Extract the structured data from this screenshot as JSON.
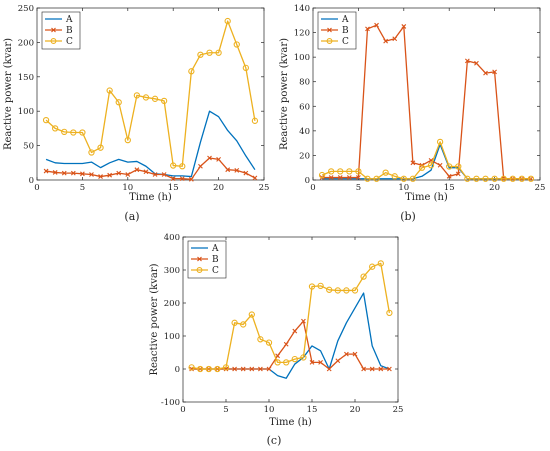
{
  "chart_data": [
    {
      "type": "line",
      "panel_label": "(a)",
      "xlabel": "Time (h)",
      "ylabel": "Reactive power (kvar)",
      "xlim": [
        0,
        25
      ],
      "ylim": [
        0,
        250
      ],
      "xticks": [
        0,
        5,
        10,
        15,
        20,
        25
      ],
      "yticks": [
        0,
        50,
        100,
        150,
        200,
        250
      ],
      "legend_position": "top-left",
      "series": [
        {
          "name": "A",
          "color": "#0072BD",
          "marker": "none",
          "x": [
            1,
            2,
            3,
            4,
            5,
            6,
            7,
            8,
            9,
            10,
            11,
            12,
            13,
            14,
            15,
            16,
            17,
            18,
            19,
            20,
            21,
            22,
            23,
            24
          ],
          "y": [
            30,
            25,
            24,
            24,
            24,
            26,
            18,
            25,
            30,
            26,
            27,
            20,
            9,
            8,
            6,
            6,
            5,
            55,
            100,
            92,
            72,
            57,
            35,
            15
          ]
        },
        {
          "name": "B",
          "color": "#D95319",
          "marker": "x",
          "x": [
            1,
            2,
            3,
            4,
            5,
            6,
            7,
            8,
            9,
            10,
            11,
            12,
            13,
            14,
            15,
            16,
            17,
            18,
            19,
            20,
            21,
            22,
            23,
            24
          ],
          "y": [
            13,
            11,
            10,
            10,
            9,
            8,
            5,
            7,
            10,
            8,
            15,
            12,
            8,
            8,
            2,
            2,
            1,
            20,
            32,
            30,
            15,
            14,
            10,
            3
          ]
        },
        {
          "name": "C",
          "color": "#EDB120",
          "marker": "o",
          "x": [
            1,
            2,
            3,
            4,
            5,
            6,
            7,
            8,
            9,
            10,
            11,
            12,
            13,
            14,
            15,
            16,
            17,
            18,
            19,
            20,
            21,
            22,
            23,
            24
          ],
          "y": [
            87,
            75,
            70,
            69,
            69,
            40,
            47,
            130,
            113,
            58,
            123,
            120,
            118,
            115,
            21,
            20,
            158,
            182,
            185,
            185,
            231,
            197,
            163,
            86
          ]
        }
      ]
    },
    {
      "type": "line",
      "panel_label": "(b)",
      "xlabel": "Time (h)",
      "ylabel": "Reactive power (kvar)",
      "xlim": [
        0,
        25
      ],
      "ylim": [
        0,
        140
      ],
      "xticks": [
        0,
        5,
        10,
        15,
        20,
        25
      ],
      "yticks": [
        0,
        20,
        40,
        60,
        80,
        100,
        120,
        140
      ],
      "legend_position": "top-left",
      "series": [
        {
          "name": "A",
          "color": "#0072BD",
          "marker": "none",
          "x": [
            1,
            2,
            3,
            4,
            5,
            6,
            7,
            8,
            9,
            10,
            11,
            12,
            13,
            14,
            15,
            16,
            17,
            18,
            19,
            20,
            21,
            22,
            23,
            24
          ],
          "y": [
            1,
            1,
            1,
            1,
            1,
            1,
            1,
            1,
            1,
            1,
            1,
            3,
            8,
            29,
            10,
            10,
            1,
            1,
            1,
            1,
            1,
            1,
            1,
            1
          ]
        },
        {
          "name": "B",
          "color": "#D95319",
          "marker": "x",
          "x": [
            1,
            2,
            3,
            4,
            5,
            6,
            7,
            8,
            9,
            10,
            11,
            12,
            13,
            14,
            15,
            16,
            17,
            18,
            19,
            20,
            21,
            22,
            23,
            24
          ],
          "y": [
            2,
            2,
            2,
            2,
            2,
            123,
            126,
            113,
            115,
            125,
            14,
            12,
            16,
            12,
            3,
            5,
            97,
            95,
            87,
            88,
            1,
            1,
            1,
            1
          ]
        },
        {
          "name": "C",
          "color": "#EDB120",
          "marker": "o",
          "x": [
            1,
            2,
            3,
            4,
            5,
            6,
            7,
            8,
            9,
            10,
            11,
            12,
            13,
            14,
            15,
            16,
            17,
            18,
            19,
            20,
            21,
            22,
            23,
            24
          ],
          "y": [
            4,
            7,
            7,
            7,
            7,
            1,
            1,
            6,
            3,
            1,
            1,
            10,
            12,
            31,
            11,
            11,
            1,
            1,
            1,
            1,
            1,
            1,
            1,
            1
          ]
        }
      ]
    },
    {
      "type": "line",
      "panel_label": "(c)",
      "xlabel": "Time (h)",
      "ylabel": "Reactive power (kvar)",
      "xlim": [
        0,
        25
      ],
      "ylim": [
        -100,
        400
      ],
      "xticks": [
        0,
        5,
        10,
        15,
        20,
        25
      ],
      "yticks": [
        -100,
        0,
        100,
        200,
        300,
        400
      ],
      "legend_position": "top-left",
      "series": [
        {
          "name": "A",
          "color": "#0072BD",
          "marker": "none",
          "x": [
            1,
            2,
            3,
            4,
            5,
            6,
            7,
            8,
            9,
            10,
            11,
            12,
            13,
            14,
            15,
            16,
            17,
            18,
            19,
            20,
            21,
            22,
            23,
            24
          ],
          "y": [
            0,
            0,
            0,
            0,
            0,
            0,
            0,
            0,
            0,
            0,
            -20,
            -28,
            15,
            35,
            70,
            55,
            0,
            85,
            140,
            185,
            230,
            70,
            10,
            0
          ]
        },
        {
          "name": "B",
          "color": "#D95319",
          "marker": "x",
          "x": [
            1,
            2,
            3,
            4,
            5,
            6,
            7,
            8,
            9,
            10,
            11,
            12,
            13,
            14,
            15,
            16,
            17,
            18,
            19,
            20,
            21,
            22,
            23,
            24
          ],
          "y": [
            0,
            0,
            0,
            0,
            0,
            0,
            0,
            0,
            0,
            0,
            40,
            75,
            115,
            145,
            20,
            20,
            0,
            25,
            45,
            45,
            0,
            0,
            0,
            0
          ]
        },
        {
          "name": "C",
          "color": "#EDB120",
          "marker": "o",
          "x": [
            1,
            2,
            3,
            4,
            5,
            6,
            7,
            8,
            9,
            10,
            11,
            12,
            13,
            14,
            15,
            16,
            17,
            18,
            19,
            20,
            21,
            22,
            23,
            24
          ],
          "y": [
            5,
            0,
            0,
            0,
            5,
            140,
            135,
            165,
            90,
            80,
            20,
            20,
            30,
            35,
            250,
            252,
            240,
            238,
            238,
            238,
            280,
            310,
            320,
            170
          ]
        }
      ]
    }
  ]
}
